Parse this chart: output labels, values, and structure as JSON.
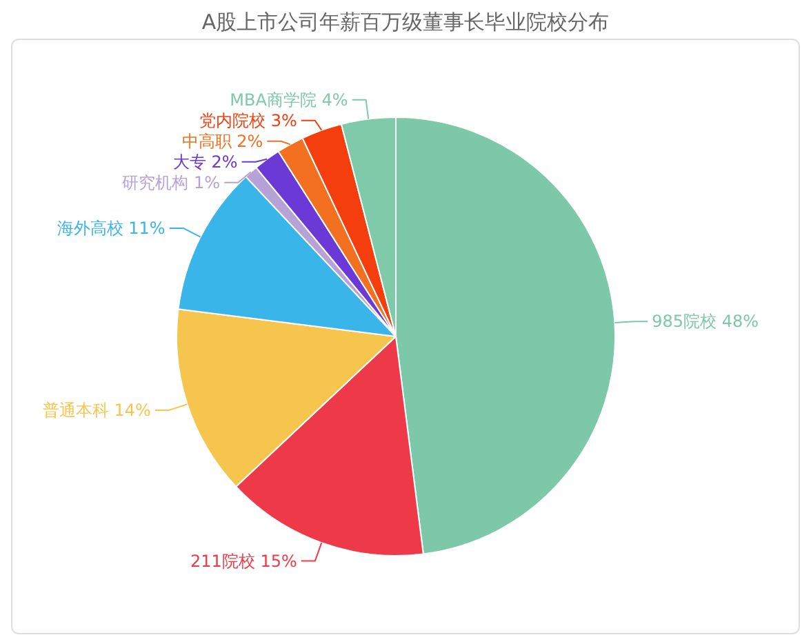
{
  "chart_data": {
    "type": "pie",
    "title": "A股上市公司年薪百万级董事长毕业院校分布",
    "categories": [
      "985院校",
      "211院校",
      "普通本科",
      "海外高校",
      "研究机构",
      "大专",
      "中高职",
      "党内院校",
      "MBA商学院"
    ],
    "values": [
      48,
      15,
      14,
      11,
      1,
      2,
      2,
      3,
      4
    ],
    "value_labels": [
      "48%",
      "15%",
      "14%",
      "11%",
      "1%",
      "2%",
      "2%",
      "3%",
      "4%"
    ],
    "colors": [
      "#7cc8a8",
      "#ee3a48",
      "#f5c54e",
      "#3ab5ea",
      "#b7a2d8",
      "#6b3ad6",
      "#f2701f",
      "#f43e0e",
      "#7ecaa9"
    ]
  }
}
